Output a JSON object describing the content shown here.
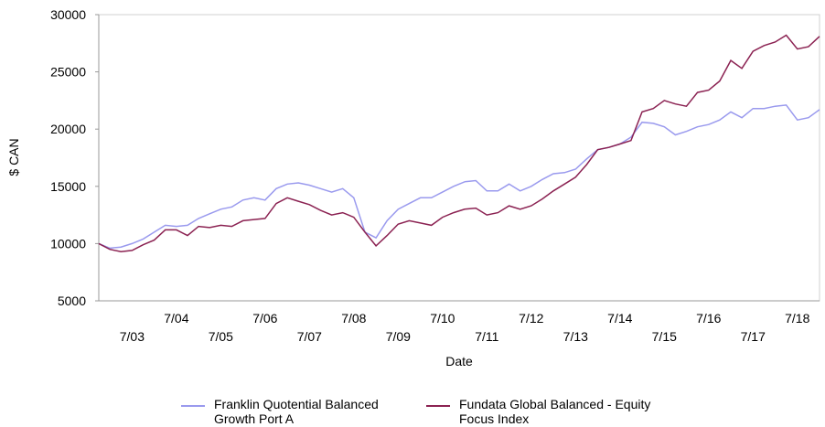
{
  "chart_data": {
    "type": "line",
    "y_label": "$ CAN",
    "x_label": "Date",
    "categories": [
      null,
      null,
      null,
      "7/03",
      null,
      null,
      null,
      "7/04",
      null,
      null,
      null,
      "7/05",
      null,
      null,
      null,
      "7/06",
      null,
      null,
      null,
      "7/07",
      null,
      null,
      null,
      "7/08",
      null,
      null,
      null,
      "7/09",
      null,
      null,
      null,
      "7/10",
      null,
      null,
      null,
      "7/11",
      null,
      null,
      null,
      "7/12",
      null,
      null,
      null,
      "7/13",
      null,
      null,
      null,
      "7/14",
      null,
      null,
      null,
      "7/15",
      null,
      null,
      null,
      "7/16",
      null,
      null,
      null,
      "7/17",
      null,
      null,
      null,
      "7/18",
      null,
      null
    ],
    "series": [
      {
        "name": "Franklin Quotential Balanced Growth Port A",
        "color": "#9a9aee",
        "values": [
          10000,
          9600,
          9700,
          10000,
          10400,
          11000,
          11600,
          11500,
          11600,
          12200,
          12600,
          13000,
          13200,
          13800,
          14000,
          13800,
          14800,
          15200,
          15300,
          15100,
          14800,
          14500,
          14800,
          14000,
          11000,
          10500,
          12000,
          13000,
          13500,
          14000,
          14000,
          14500,
          15000,
          15400,
          15500,
          14600,
          14600,
          15200,
          14600,
          15000,
          15600,
          16100,
          16200,
          16500,
          17400,
          18200,
          18400,
          18700,
          19300,
          20600,
          20500,
          20200,
          19500,
          19800,
          20200,
          20400,
          20800,
          21500,
          21000,
          21800,
          21800,
          22000,
          22100,
          20800,
          21000,
          21700
        ]
      },
      {
        "name": "Fundata Global Balanced - Equity Focus Index",
        "color": "#8b2252",
        "values": [
          10000,
          9500,
          9300,
          9400,
          9900,
          10300,
          11200,
          11200,
          10700,
          11500,
          11400,
          11600,
          11500,
          12000,
          12100,
          12200,
          13500,
          14000,
          13700,
          13400,
          12900,
          12500,
          12700,
          12300,
          11000,
          9800,
          10700,
          11700,
          12000,
          11800,
          11600,
          12300,
          12700,
          13000,
          13100,
          12500,
          12700,
          13300,
          13000,
          13300,
          13900,
          14600,
          15200,
          15800,
          16900,
          18200,
          18400,
          18700,
          19000,
          21500,
          21800,
          22500,
          22200,
          22000,
          23200,
          23400,
          24200,
          26000,
          25300,
          26800,
          27300,
          27600,
          28200,
          27000,
          27200,
          28100
        ]
      }
    ],
    "ylim": [
      5000,
      30000
    ],
    "yticks": [
      5000,
      10000,
      15000,
      20000,
      25000,
      30000
    ]
  }
}
